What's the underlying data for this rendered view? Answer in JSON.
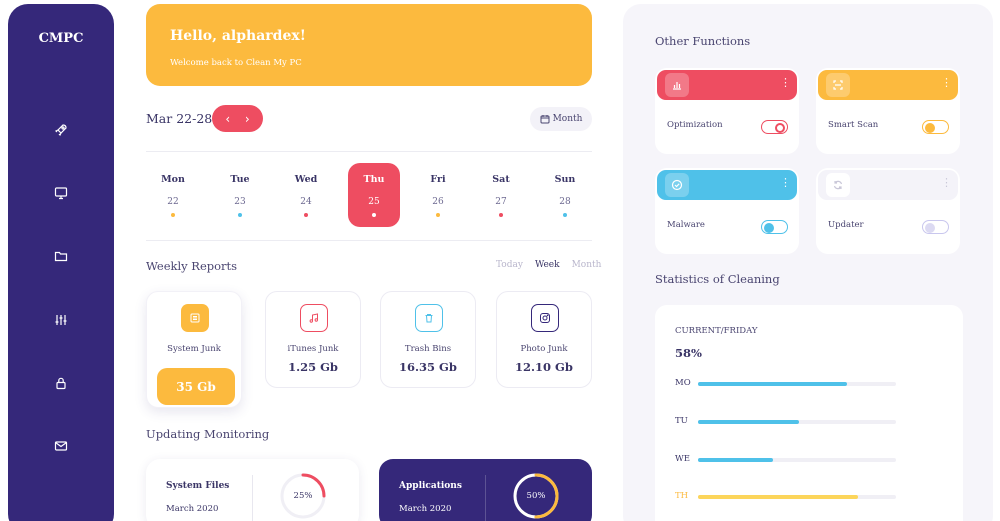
{
  "app": {
    "brand": "CMPC"
  },
  "sidebar": {
    "icons": [
      "rocket-icon",
      "monitor-icon",
      "folder-icon",
      "sliders-icon",
      "lock-icon",
      "mail-icon"
    ]
  },
  "banner": {
    "greeting": "Hello, alphardex!",
    "subtitle": "Welcome back to Clean My PC"
  },
  "calendar": {
    "range": "Mar 22-28",
    "prev_glyph": "‹",
    "next_glyph": "›",
    "view_label": "Month",
    "days": [
      {
        "name": "Mon",
        "num": "22",
        "dot": "#fcba3e",
        "active": false
      },
      {
        "name": "Tue",
        "num": "23",
        "dot": "#4fc1e9",
        "active": false
      },
      {
        "name": "Wed",
        "num": "24",
        "dot": "#ee4d61",
        "active": false
      },
      {
        "name": "Thu",
        "num": "25",
        "dot": "#ffffff",
        "active": true
      },
      {
        "name": "Fri",
        "num": "26",
        "dot": "#fcba3e",
        "active": false
      },
      {
        "name": "Sat",
        "num": "27",
        "dot": "#ee4d61",
        "active": false
      },
      {
        "name": "Sun",
        "num": "28",
        "dot": "#4fc1e9",
        "active": false
      }
    ]
  },
  "weekly": {
    "title": "Weekly Reports",
    "filters": [
      "Today",
      "Week",
      "Month"
    ],
    "active_filter": "Week",
    "reports": [
      {
        "label": "System Junk",
        "value": "35 Gb",
        "icon": "list-icon",
        "color": "#fcba3e"
      },
      {
        "label": "iTunes Junk",
        "value": "1.25 Gb",
        "icon": "music-icon",
        "color": "#ee4d61"
      },
      {
        "label": "Trash Bins",
        "value": "16.35 Gb",
        "icon": "trash-icon",
        "color": "#4fc1e9"
      },
      {
        "label": "Photo Junk",
        "value": "12.10 Gb",
        "icon": "instagram-icon",
        "color": "#35287a"
      }
    ]
  },
  "monitoring": {
    "title": "Updating Monitoring",
    "cards": [
      {
        "title": "System Files",
        "date": "March 2020",
        "percent": "25%",
        "progress": 0.25,
        "color": "#ee4d61"
      },
      {
        "title": "Applications",
        "date": "March 2020",
        "percent": "50%",
        "progress": 0.5,
        "color": "#fcba3e"
      }
    ]
  },
  "other_functions": {
    "title": "Other Functions",
    "items": [
      {
        "label": "Optimization",
        "icon": "chart-icon",
        "color": "#ee4d61",
        "toggle_on": false
      },
      {
        "label": "Smart Scan",
        "icon": "scan-icon",
        "color": "#fcba3e",
        "toggle_on": true
      },
      {
        "label": "Malware",
        "icon": "check-icon",
        "color": "#4fc1e9",
        "toggle_on": true
      },
      {
        "label": "Updater",
        "icon": "refresh-icon",
        "color": "#f4f3f9",
        "toggle_on": false
      }
    ]
  },
  "statistics": {
    "title": "Statistics of Cleaning",
    "label": "CURRENT/FRIDAY",
    "value": "58%",
    "rows": [
      {
        "day": "MO",
        "level": 0.75,
        "color": "#4fc1e9",
        "label_color": "#3a3566"
      },
      {
        "day": "TU",
        "level": 0.51,
        "color": "#4fc1e9",
        "label_color": "#3a3566"
      },
      {
        "day": "WE",
        "level": 0.38,
        "color": "#4fc1e9",
        "label_color": "#3a3566"
      },
      {
        "day": "TH",
        "level": 0.81,
        "color": "#fcd55a",
        "label_color": "#fcba3e"
      }
    ]
  }
}
